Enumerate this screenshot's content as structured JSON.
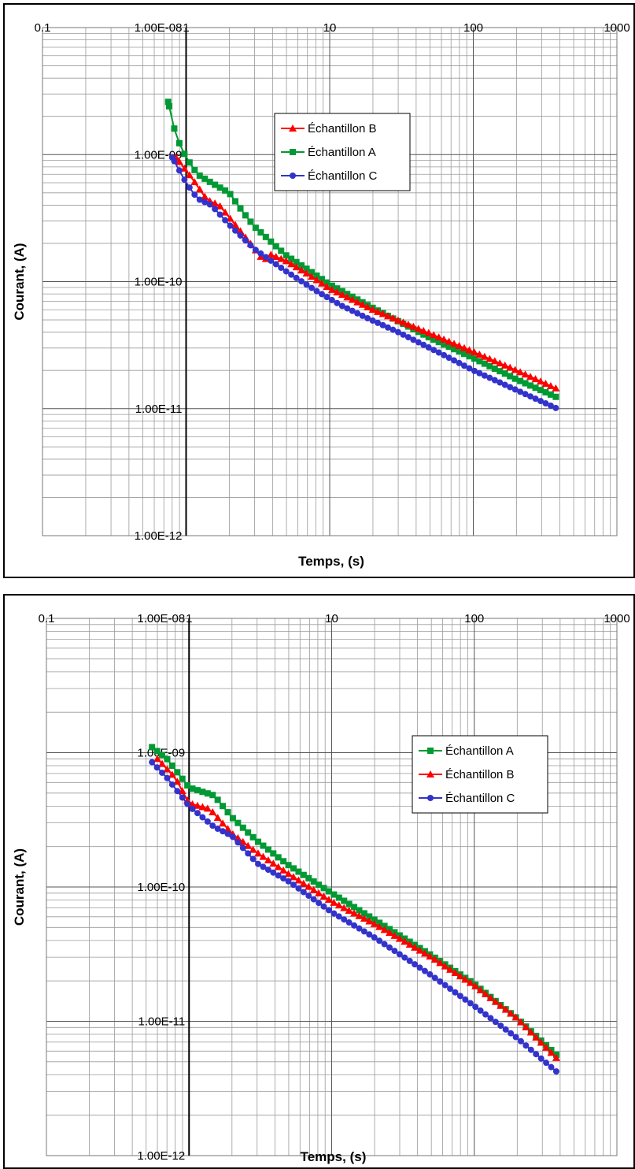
{
  "chart_data": [
    {
      "type": "line",
      "xscale": "log",
      "yscale": "log",
      "xlim": [
        0.1,
        1000
      ],
      "ylim": [
        1e-12,
        1e-08
      ],
      "xlabel": "Temps, (s)",
      "ylabel": "Courant,  (A)",
      "x_ticks": [
        "0.1",
        "1",
        "10",
        "100",
        "1000"
      ],
      "y_ticks": [
        "1.00E-08",
        "1.00E-09",
        "1.00E-10",
        "1.00E-11",
        "1.00E-12"
      ],
      "y_axis_crosses_x": 1,
      "grid": true,
      "legend_position": "upper-middle",
      "series": [
        {
          "name": "Échantillon B",
          "color": "#ff0000",
          "marker": "triangle",
          "points": [
            [
              0.85,
              9.5e-10
            ],
            [
              1.1,
              6.5e-10
            ],
            [
              1.4,
              4.4e-10
            ],
            [
              1.7,
              4e-10
            ],
            [
              2.2,
              2.8e-10
            ],
            [
              2.8,
              2e-10
            ],
            [
              3.5,
              1.45e-10
            ],
            [
              3.8,
              1.65e-10
            ],
            [
              5,
              1.45e-10
            ],
            [
              7,
              1.15e-10
            ],
            [
              10,
              8.8e-11
            ],
            [
              20,
              6e-11
            ],
            [
              50,
              3.9e-11
            ],
            [
              100,
              2.8e-11
            ],
            [
              200,
              2e-11
            ],
            [
              400,
              1.4e-11
            ]
          ]
        },
        {
          "name": "Échantillon A",
          "color": "#009933",
          "marker": "square",
          "points": [
            [
              0.75,
              2.6e-09
            ],
            [
              0.85,
              1.4e-09
            ],
            [
              1.0,
              9.5e-10
            ],
            [
              1.2,
              7e-10
            ],
            [
              1.5,
              6e-10
            ],
            [
              2.0,
              5e-10
            ],
            [
              2.5,
              3.5e-10
            ],
            [
              3.0,
              2.7e-10
            ],
            [
              5.0,
              1.6e-10
            ],
            [
              7,
              1.25e-10
            ],
            [
              10,
              9.5e-11
            ],
            [
              20,
              6.2e-11
            ],
            [
              50,
              3.6e-11
            ],
            [
              100,
              2.5e-11
            ],
            [
              200,
              1.7e-11
            ],
            [
              400,
              1.2e-11
            ]
          ]
        },
        {
          "name": "Échantillon C",
          "color": "#3333cc",
          "marker": "circle",
          "points": [
            [
              0.8,
              9.5e-10
            ],
            [
              1.0,
              6e-10
            ],
            [
              1.2,
              4.5e-10
            ],
            [
              1.5,
              4e-10
            ],
            [
              2.0,
              2.8e-10
            ],
            [
              3.0,
              1.8e-10
            ],
            [
              5,
              1.2e-10
            ],
            [
              8,
              8.5e-11
            ],
            [
              12,
              6.5e-11
            ],
            [
              18,
              5.2e-11
            ],
            [
              30,
              4e-11
            ],
            [
              60,
              2.7e-11
            ],
            [
              100,
              2e-11
            ],
            [
              200,
              1.4e-11
            ],
            [
              400,
              9.8e-12
            ]
          ]
        }
      ],
      "legend_order": [
        "Échantillon B",
        "Échantillon A",
        "Échantillon C"
      ]
    },
    {
      "type": "line",
      "xscale": "log",
      "yscale": "log",
      "xlim": [
        0.1,
        1000
      ],
      "ylim": [
        1e-12,
        1e-08
      ],
      "xlabel": "Temps, (s)",
      "ylabel": "Courant,  (A)",
      "x_ticks": [
        "0.1",
        "1",
        "10",
        "100",
        "1000"
      ],
      "y_ticks": [
        "1.00E-08",
        "1.00E-09",
        "1.00E-10",
        "1.00E-11",
        "1.00E-12"
      ],
      "y_axis_crosses_x": 1,
      "grid": true,
      "legend_position": "right-middle",
      "series": [
        {
          "name": "Échantillon A",
          "color": "#009933",
          "marker": "square",
          "points": [
            [
              0.55,
              1.1e-09
            ],
            [
              0.7,
              9e-10
            ],
            [
              1.0,
              5.5e-10
            ],
            [
              1.5,
              4.8e-10
            ],
            [
              2.0,
              3.3e-10
            ],
            [
              3.0,
              2.2e-10
            ],
            [
              5,
              1.45e-10
            ],
            [
              10,
              9e-11
            ],
            [
              20,
              5.7e-11
            ],
            [
              50,
              3.1e-11
            ],
            [
              100,
              1.9e-11
            ],
            [
              200,
              1.05e-11
            ],
            [
              400,
              5.3e-12
            ]
          ]
        },
        {
          "name": "Échantillon B",
          "color": "#ff0000",
          "marker": "triangle",
          "points": [
            [
              0.6,
              9e-10
            ],
            [
              0.8,
              6.5e-10
            ],
            [
              1.0,
              4.2e-10
            ],
            [
              1.4,
              3.8e-10
            ],
            [
              2.0,
              2.5e-10
            ],
            [
              3.0,
              1.8e-10
            ],
            [
              5,
              1.25e-10
            ],
            [
              10,
              7.8e-11
            ],
            [
              20,
              5.3e-11
            ],
            [
              50,
              3e-11
            ],
            [
              100,
              1.85e-11
            ],
            [
              200,
              1.05e-11
            ],
            [
              400,
              5e-12
            ]
          ]
        },
        {
          "name": "Échantillon C",
          "color": "#3333cc",
          "marker": "circle",
          "points": [
            [
              0.55,
              8.5e-10
            ],
            [
              0.7,
              6.5e-10
            ],
            [
              1.0,
              4e-10
            ],
            [
              1.5,
              2.8e-10
            ],
            [
              2.0,
              2.4e-10
            ],
            [
              3.0,
              1.5e-10
            ],
            [
              5,
              1.1e-10
            ],
            [
              10,
              6.5e-11
            ],
            [
              20,
              4.2e-11
            ],
            [
              50,
              2.2e-11
            ],
            [
              100,
              1.3e-11
            ],
            [
              200,
              7.5e-12
            ],
            [
              400,
              4e-12
            ]
          ]
        }
      ],
      "legend_order": [
        "Échantillon A",
        "Échantillon B",
        "Échantillon C"
      ]
    }
  ]
}
